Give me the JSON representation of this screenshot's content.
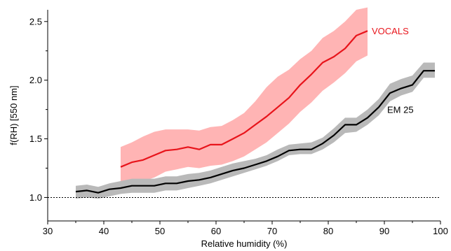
{
  "chart_data": {
    "type": "line",
    "xlabel": "Relative humidity (%)",
    "ylabel": "f(RH) [550 nm]",
    "xlim": [
      30,
      100
    ],
    "ylim": [
      0.8,
      2.6
    ],
    "xticks": [
      30,
      40,
      50,
      60,
      70,
      80,
      90,
      100
    ],
    "yticks": [
      1.0,
      1.5,
      2.0,
      2.5
    ],
    "xtick_labels": [
      "30",
      "40",
      "50",
      "60",
      "70",
      "80",
      "90",
      "100"
    ],
    "ytick_labels": [
      "1.0",
      "1.5",
      "2.0",
      "2.5"
    ],
    "reference_line": {
      "y": 1.0,
      "style": "dotted"
    },
    "grid": false,
    "series": [
      {
        "name": "VOCALS",
        "color": "#e8141b",
        "band_color": "#ffb4b4",
        "x": [
          43,
          45,
          47,
          49,
          51,
          53,
          55,
          57,
          59,
          61,
          63,
          65,
          67,
          69,
          71,
          73,
          75,
          77,
          79,
          81,
          83,
          85,
          87
        ],
        "y": [
          1.26,
          1.3,
          1.32,
          1.36,
          1.4,
          1.41,
          1.43,
          1.41,
          1.45,
          1.45,
          1.5,
          1.55,
          1.62,
          1.69,
          1.77,
          1.85,
          1.96,
          2.05,
          2.15,
          2.2,
          2.27,
          2.38,
          2.42
        ],
        "lower": [
          1.11,
          1.12,
          1.14,
          1.17,
          1.22,
          1.24,
          1.26,
          1.25,
          1.27,
          1.28,
          1.31,
          1.35,
          1.41,
          1.47,
          1.55,
          1.63,
          1.73,
          1.81,
          1.91,
          1.98,
          2.06,
          2.16,
          2.21
        ],
        "upper": [
          1.43,
          1.47,
          1.52,
          1.56,
          1.58,
          1.58,
          1.58,
          1.57,
          1.6,
          1.61,
          1.66,
          1.72,
          1.82,
          1.94,
          2.03,
          2.09,
          2.18,
          2.25,
          2.36,
          2.42,
          2.5,
          2.6,
          2.62
        ]
      },
      {
        "name": "EM 25",
        "color": "#000000",
        "band_color": "#b9b9b9",
        "x": [
          35,
          37,
          39,
          41,
          43,
          45,
          47,
          49,
          51,
          53,
          55,
          57,
          59,
          61,
          63,
          65,
          67,
          69,
          71,
          73,
          75,
          77,
          79,
          81,
          83,
          85,
          87,
          89,
          91,
          93,
          95,
          97,
          99
        ],
        "y": [
          1.05,
          1.06,
          1.04,
          1.07,
          1.08,
          1.1,
          1.1,
          1.1,
          1.12,
          1.12,
          1.14,
          1.15,
          1.17,
          1.2,
          1.23,
          1.25,
          1.28,
          1.31,
          1.35,
          1.4,
          1.41,
          1.41,
          1.46,
          1.53,
          1.62,
          1.62,
          1.68,
          1.77,
          1.89,
          1.93,
          1.96,
          2.08,
          2.08
        ],
        "lower": [
          0.99,
          1.0,
          0.99,
          1.01,
          1.03,
          1.04,
          1.04,
          1.04,
          1.06,
          1.06,
          1.08,
          1.1,
          1.12,
          1.15,
          1.18,
          1.21,
          1.24,
          1.27,
          1.31,
          1.36,
          1.37,
          1.37,
          1.41,
          1.47,
          1.55,
          1.56,
          1.62,
          1.7,
          1.82,
          1.87,
          1.9,
          2.02,
          2.02
        ],
        "upper": [
          1.1,
          1.11,
          1.09,
          1.12,
          1.14,
          1.16,
          1.16,
          1.16,
          1.18,
          1.18,
          1.2,
          1.21,
          1.23,
          1.26,
          1.29,
          1.31,
          1.33,
          1.36,
          1.41,
          1.45,
          1.46,
          1.47,
          1.51,
          1.59,
          1.68,
          1.68,
          1.75,
          1.84,
          1.97,
          2.01,
          2.04,
          2.15,
          2.15
        ]
      }
    ]
  }
}
